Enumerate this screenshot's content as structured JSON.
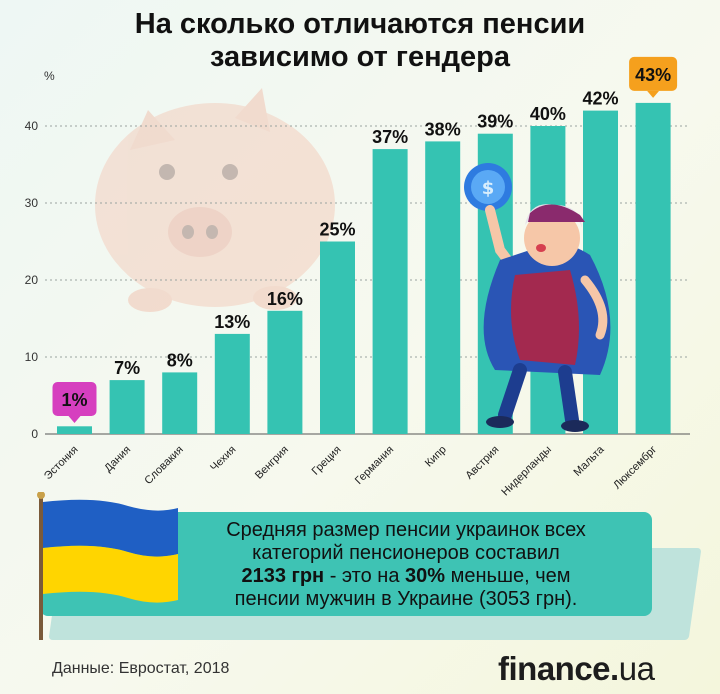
{
  "title_line1": "На сколько отличаются пенсии",
  "title_line2": "зависимо от гендера",
  "chart_data": {
    "type": "bar",
    "title": "На сколько отличаются пенсии зависимо от гендера",
    "ylabel": "%",
    "ylim": [
      0,
      45
    ],
    "yticks": [
      "0",
      "10",
      "20",
      "30",
      "40"
    ],
    "grid": true,
    "categories": [
      "Эстония",
      "Дания",
      "Словакия",
      "Чехия",
      "Венгрия",
      "Греция",
      "Германия",
      "Кипр",
      "Австрия",
      "Нидерланды",
      "Мальта",
      "Люксембрг"
    ],
    "values": [
      1,
      7,
      8,
      13,
      16,
      25,
      37,
      38,
      39,
      40,
      42,
      43
    ],
    "labels": [
      "1%",
      "7%",
      "8%",
      "13%",
      "16%",
      "25%",
      "37%",
      "38%",
      "39%",
      "40%",
      "42%",
      "43%"
    ],
    "bar_color": "#35c3b2",
    "highlight_min_color": "#d63fbf",
    "highlight_max_color": "#f5a01d"
  },
  "info": {
    "line1": "Средняя размер пенсии украинок всех",
    "line2": "категорий пенсионеров составил",
    "amount": "2133 грн",
    "mid": " - это на ",
    "percent": "30%",
    "tail": " меньше, чем",
    "line4": "пенсии мужчин в Украине (3053 грн)."
  },
  "source": "Данные: Евростат, 2018",
  "brand_main": "finance",
  "brand_dot": ".",
  "brand_suffix": "ua",
  "colors": {
    "accent": "#35c3b2",
    "info_box": "#3ec3b4",
    "flag_blue": "#1f5fc4",
    "flag_yellow": "#ffd500"
  }
}
